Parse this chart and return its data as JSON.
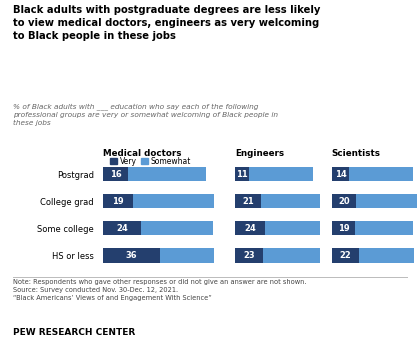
{
  "title_line1": "Black adults with postgraduate degrees are less likely",
  "title_line2": "to view medical doctors, engineers as very welcoming",
  "title_line3": "to Black people in these jobs",
  "subtitle": "% of Black adults with ___ education who say each of the following\nprofessional groups are very or somewhat welcoming of Black people in\nthese jobs",
  "categories": [
    "Postgrad",
    "College grad",
    "Some college",
    "HS or less"
  ],
  "groups": [
    "Medical doctors",
    "Engineers",
    "Scientists"
  ],
  "very_values": [
    [
      16,
      11,
      14
    ],
    [
      19,
      21,
      20
    ],
    [
      24,
      24,
      19
    ],
    [
      36,
      23,
      22
    ]
  ],
  "somewhat_values": [
    [
      49,
      52,
      52
    ],
    [
      52,
      48,
      49
    ],
    [
      45,
      45,
      47
    ],
    [
      35,
      46,
      45
    ]
  ],
  "bar_total": 65,
  "color_very": "#243f6e",
  "color_somewhat": "#5b9bd5",
  "note_line1": "Note: Respondents who gave other responses or did not give an answer are not shown.",
  "note_line2": "Source: Survey conducted Nov. 30-Dec. 12, 2021.",
  "note_line3": "“Black Americans’ Views of and Engagement With Science”",
  "footer": "PEW RESEARCH CENTER"
}
